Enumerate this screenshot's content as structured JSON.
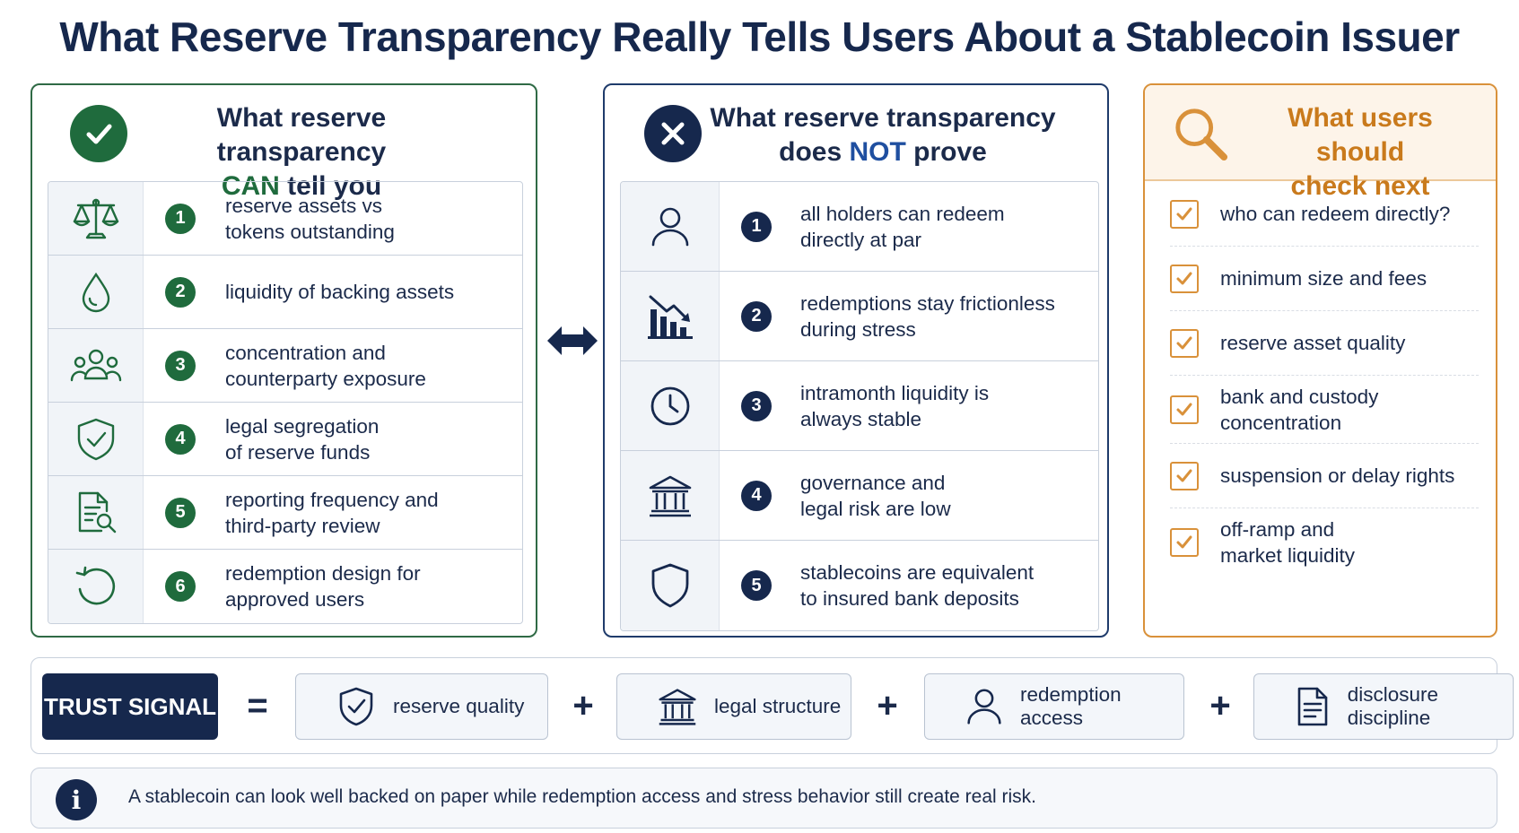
{
  "title": "What Reserve Transparency Really Tells Users About a Stablecoin Issuer",
  "colors": {
    "navy": "#16284d",
    "green": "#1f6b3d",
    "orange": "#d9913a"
  },
  "can_panel": {
    "heading_line1": "What reserve transparency",
    "heading_em": "CAN",
    "heading_rest": "tell you",
    "icon": "checkmark-icon",
    "items": [
      {
        "num": "1",
        "icon": "scale-icon",
        "line1": "reserve assets vs",
        "line2": "tokens outstanding"
      },
      {
        "num": "2",
        "icon": "droplet-icon",
        "line1": "liquidity of backing assets",
        "line2": ""
      },
      {
        "num": "3",
        "icon": "people-icon",
        "line1": "concentration and",
        "line2": "counterparty exposure"
      },
      {
        "num": "4",
        "icon": "shield-check-icon",
        "line1": "legal segregation",
        "line2": "of reserve funds"
      },
      {
        "num": "5",
        "icon": "document-search-icon",
        "line1": "reporting frequency and",
        "line2": "third-party review"
      },
      {
        "num": "6",
        "icon": "refresh-icon",
        "line1": "redemption design for",
        "line2": "approved users"
      }
    ]
  },
  "not_panel": {
    "heading_line1": "What reserve transparency",
    "heading_pre": "does",
    "heading_em": "NOT",
    "heading_rest": "prove",
    "icon": "x-icon",
    "items": [
      {
        "num": "1",
        "icon": "person-icon",
        "line1": "all holders can redeem",
        "line2": "directly at par"
      },
      {
        "num": "2",
        "icon": "declining-chart-icon",
        "line1": "redemptions stay frictionless",
        "line2": "during stress"
      },
      {
        "num": "3",
        "icon": "clock-icon",
        "line1": "intramonth liquidity is",
        "line2": "always stable"
      },
      {
        "num": "4",
        "icon": "bank-icon",
        "line1": "governance and",
        "line2": "legal risk are low"
      },
      {
        "num": "5",
        "icon": "shield-icon",
        "line1": "stablecoins are equivalent",
        "line2": "to insured bank deposits"
      }
    ]
  },
  "check_panel": {
    "heading_line1": "What users should",
    "heading_line2": "check next",
    "icon": "magnifier-icon",
    "items": [
      {
        "line1": "who can redeem directly?",
        "line2": ""
      },
      {
        "line1": "minimum size and fees",
        "line2": ""
      },
      {
        "line1": "reserve asset quality",
        "line2": ""
      },
      {
        "line1": "bank and custody",
        "line2": "concentration"
      },
      {
        "line1": "suspension or delay rights",
        "line2": ""
      },
      {
        "line1": "off-ramp and",
        "line2": "market liquidity"
      }
    ]
  },
  "trust": {
    "label": "TRUST SIGNAL",
    "equals": "=",
    "plus": "+",
    "parts": [
      {
        "label": "reserve quality",
        "icon": "shield-check-icon"
      },
      {
        "label": "legal structure",
        "icon": "bank-icon"
      },
      {
        "label": "redemption access",
        "icon": "person-icon"
      },
      {
        "label": "disclosure discipline",
        "icon": "document-icon"
      }
    ]
  },
  "note": {
    "icon": "info-icon",
    "text": "A stablecoin can look well backed on paper while redemption access and stress behavior still create real risk."
  }
}
